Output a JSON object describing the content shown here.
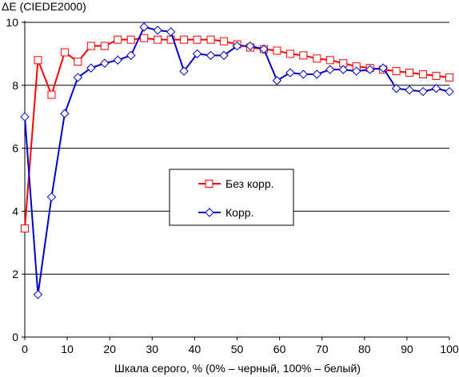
{
  "chart_data": {
    "type": "line",
    "title": "",
    "ylabel": "ΔE (CIEDE2000)",
    "xlabel": "Шкала серого, % (0% – черный, 100% – белый)",
    "xlim": [
      0,
      100
    ],
    "ylim": [
      0,
      10
    ],
    "xticks": [
      0,
      10,
      20,
      30,
      40,
      50,
      60,
      70,
      80,
      90,
      100
    ],
    "yticks": [
      0,
      2,
      4,
      6,
      8,
      10
    ],
    "grid": "horizontal",
    "legend_position": "center-right",
    "colors": {
      "series_0": "#ff0000",
      "series_1": "#0000cc",
      "grid": "#000000"
    },
    "x": [
      0,
      3.1,
      6.3,
      9.4,
      12.5,
      15.6,
      18.8,
      21.9,
      25,
      28.1,
      31.3,
      34.4,
      37.5,
      40.6,
      43.8,
      46.9,
      50,
      53.1,
      56.3,
      59.4,
      62.5,
      65.6,
      68.8,
      71.9,
      75,
      78.1,
      81.3,
      84.4,
      87.5,
      90.6,
      93.8,
      96.9,
      100
    ],
    "series": [
      {
        "name": "Без корр.",
        "marker": "square",
        "values": [
          3.45,
          8.8,
          7.7,
          9.05,
          8.75,
          9.25,
          9.25,
          9.45,
          9.45,
          9.5,
          9.45,
          9.45,
          9.45,
          9.45,
          9.45,
          9.4,
          9.3,
          9.2,
          9.15,
          9.1,
          9.0,
          8.95,
          8.85,
          8.8,
          8.7,
          8.6,
          8.55,
          8.5,
          8.45,
          8.4,
          8.35,
          8.3,
          8.25
        ]
      },
      {
        "name": "Корр.",
        "marker": "diamond",
        "values": [
          7.0,
          1.35,
          4.45,
          7.1,
          8.25,
          8.55,
          8.7,
          8.8,
          8.95,
          9.85,
          9.75,
          9.7,
          8.45,
          9.0,
          8.95,
          8.95,
          9.25,
          9.25,
          9.15,
          8.15,
          8.4,
          8.35,
          8.35,
          8.5,
          8.5,
          8.45,
          8.5,
          8.55,
          7.9,
          7.85,
          7.8,
          7.9,
          7.8
        ]
      }
    ]
  }
}
